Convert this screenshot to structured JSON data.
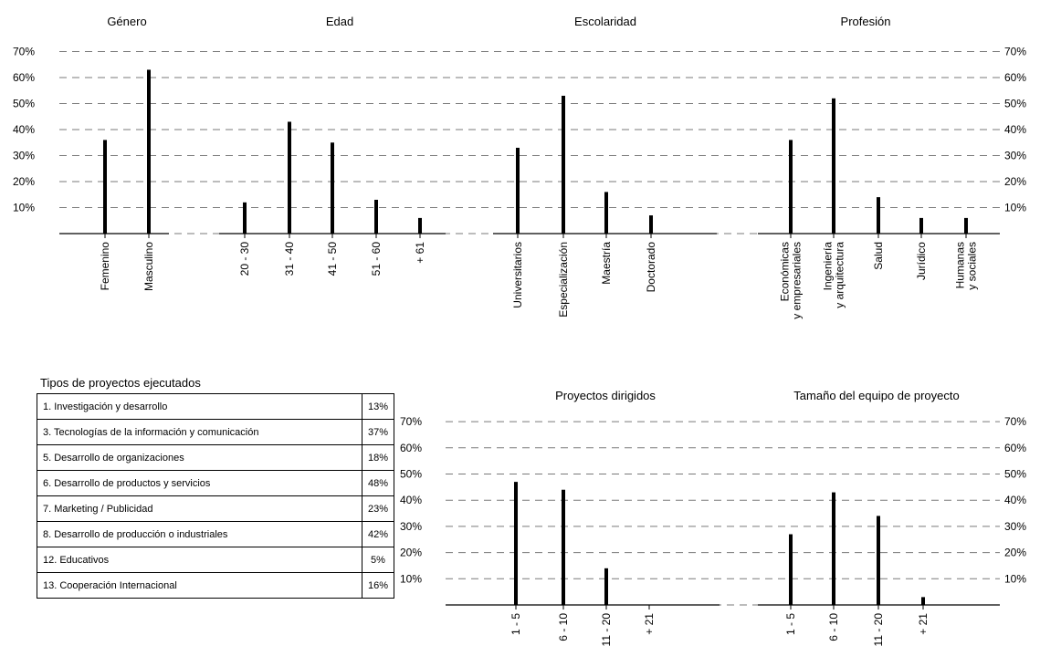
{
  "chart_data": [
    {
      "type": "bar",
      "title": "Género",
      "categories": [
        "Femenino",
        "Masculino"
      ],
      "values": [
        36,
        63
      ],
      "ylim": [
        0,
        70
      ],
      "yticks": [
        "10%",
        "20%",
        "30%",
        "40%",
        "50%",
        "60%",
        "70%"
      ],
      "grid": true
    },
    {
      "type": "bar",
      "title": "Edad",
      "categories": [
        "20 - 30",
        "31 - 40",
        "41 - 50",
        "51 - 60",
        "+ 61"
      ],
      "values": [
        12,
        43,
        35,
        13,
        6
      ],
      "ylim": [
        0,
        70
      ],
      "grid": true
    },
    {
      "type": "bar",
      "title": "Escolaridad",
      "categories": [
        "Universitarios",
        "Especialización",
        "Maestría",
        "Doctorado"
      ],
      "values": [
        33,
        53,
        16,
        7
      ],
      "ylim": [
        0,
        70
      ],
      "grid": true
    },
    {
      "type": "bar",
      "title": "Profesión",
      "categories": [
        [
          "Económicas",
          "y empresariales"
        ],
        [
          "Ingeniería",
          "y arquitectura"
        ],
        [
          "Salud"
        ],
        [
          "Jurídico"
        ],
        [
          "Humanas",
          "y sociales"
        ]
      ],
      "values": [
        36,
        52,
        14,
        6,
        6
      ],
      "ylim": [
        0,
        70
      ],
      "yticks": [
        "10%",
        "20%",
        "30%",
        "40%",
        "50%",
        "60%",
        "70%"
      ],
      "grid": true
    },
    {
      "type": "bar",
      "title": "Proyectos dirigidos",
      "categories": [
        "1 - 5",
        "6 - 10",
        "11 - 20",
        "+ 21"
      ],
      "values": [
        47,
        44,
        14,
        0
      ],
      "ylim": [
        0,
        70
      ],
      "yticks": [
        "10%",
        "20%",
        "30%",
        "40%",
        "50%",
        "60%",
        "70%"
      ],
      "grid": true
    },
    {
      "type": "bar",
      "title": "Tamaño del equipo de proyecto",
      "categories": [
        "1 - 5",
        "6 - 10",
        "11 - 20",
        "+ 21"
      ],
      "values": [
        27,
        43,
        34,
        3
      ],
      "ylim": [
        0,
        70
      ],
      "yticks": [
        "10%",
        "20%",
        "30%",
        "40%",
        "50%",
        "60%",
        "70%"
      ],
      "grid": true
    }
  ],
  "projects_table": {
    "title": "Tipos de proyectos ejecutados",
    "rows": [
      {
        "label": "1. Investigación y desarrollo",
        "value": "13%"
      },
      {
        "label": "3. Tecnologías de la información y comunicación",
        "value": "37%"
      },
      {
        "label": "5. Desarrollo de organizaciones",
        "value": "18%"
      },
      {
        "label": "6. Desarrollo de productos y servicios",
        "value": "48%"
      },
      {
        "label": "7. Marketing / Publicidad",
        "value": "23%"
      },
      {
        "label": "8. Desarrollo de producción o industriales",
        "value": "42%"
      },
      {
        "label": "12. Educativos",
        "value": "5%"
      },
      {
        "label": "13. Cooperación Internacional",
        "value": "16%"
      }
    ]
  }
}
